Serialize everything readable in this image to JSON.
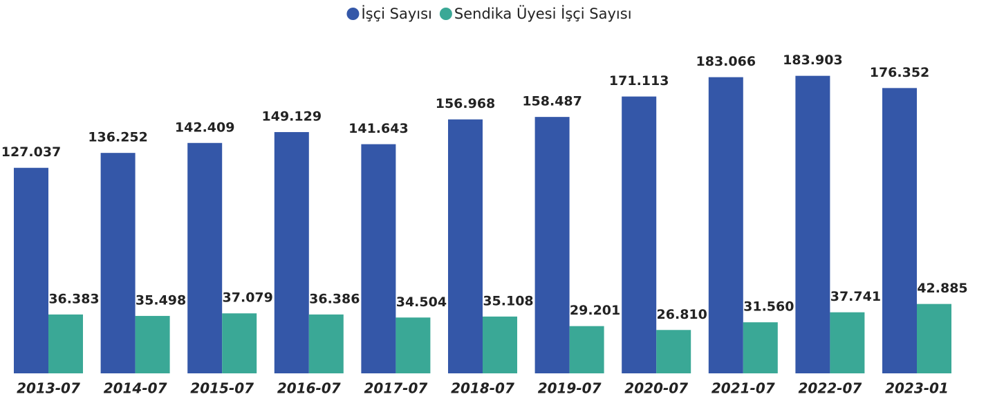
{
  "chart_data": {
    "type": "bar",
    "legend": "top",
    "categories": [
      "2013-07",
      "2014-07",
      "2015-07",
      "2016-07",
      "2017-07",
      "2018-07",
      "2019-07",
      "2020-07",
      "2021-07",
      "2022-07",
      "2023-01"
    ],
    "ylim": [
      0,
      200000
    ],
    "series": [
      {
        "name": "İşçi Sayısı",
        "color": "#3457a8",
        "values": [
          127037,
          136252,
          142409,
          149129,
          141643,
          156968,
          158487,
          171113,
          183066,
          183903,
          176352
        ],
        "value_labels": [
          "127.037",
          "136.252",
          "142.409",
          "149.129",
          "141.643",
          "156.968",
          "158.487",
          "171.113",
          "183.066",
          "183.903",
          "176.352"
        ]
      },
      {
        "name": "Sendika Üyesi İşçi Sayısı",
        "color": "#3aa896",
        "values": [
          36383,
          35498,
          37079,
          36386,
          34504,
          35108,
          29201,
          26810,
          31560,
          37741,
          42885
        ],
        "value_labels": [
          "36.383",
          "35.498",
          "37.079",
          "36.386",
          "34.504",
          "35.108",
          "29.201",
          "26.810",
          "31.560",
          "37.741",
          "42.885"
        ]
      }
    ]
  }
}
